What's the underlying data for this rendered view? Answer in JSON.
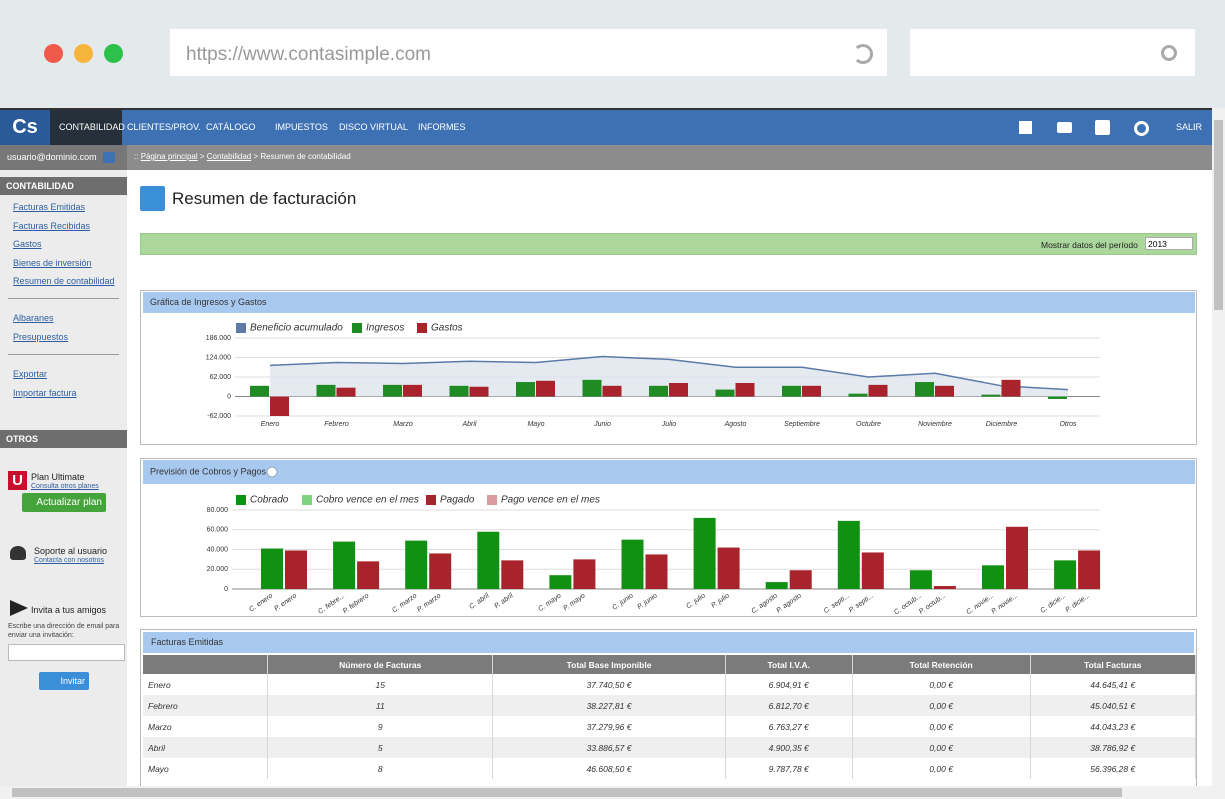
{
  "browser": {
    "url": "https://www.contasimple.com"
  },
  "nav": {
    "logo": "Cs",
    "items": [
      "CONTABILIDAD",
      "CLIENTES/PROV.",
      "CATÁLOGO",
      "IMPUESTOS",
      "DISCO VIRTUAL",
      "INFORMES"
    ],
    "logout": "SALIR"
  },
  "user": "usuario@dominio.com",
  "breadcrumb": {
    "prefix": "::",
    "links": [
      "Página principal",
      "Contabilidad"
    ],
    "separator": ">",
    "current": "Resumen de contabilidad"
  },
  "sidebar": {
    "section1": {
      "title": "CONTABILIDAD",
      "links": [
        "Facturas Emitidas",
        "Facturas Recibidas",
        "Gastos",
        "Bienes de inversión",
        "Resumen de contabilidad"
      ],
      "links2": [
        "Albaranes",
        "Presupuestos"
      ],
      "links3": [
        "Exportar",
        "Importar factura"
      ]
    },
    "section2": {
      "title": "OTROS",
      "plan": {
        "icon": "U",
        "name": "Plan Ultimate",
        "link": "Consulta otros planes",
        "button": "Actualizar plan"
      },
      "support": {
        "title": "Soporte al usuario",
        "link": "Contacta con nosotros"
      },
      "invite": {
        "title": "Invita a tus amigos",
        "text": "Escribe una dirección de email para enviar una invitación:",
        "button": "Invitar"
      }
    }
  },
  "page": {
    "title": "Resumen de facturación",
    "period_label": "Mostrar datos del período",
    "period": "2013"
  },
  "chart_data": [
    {
      "type": "bar",
      "title": "Gráfica de Ingresos y Gastos",
      "categories": [
        "Enero",
        "Febrero",
        "Marzo",
        "Abril",
        "Mayo",
        "Junio",
        "Julio",
        "Agosto",
        "Septiembre",
        "Octubre",
        "Noviembre",
        "Diciembre",
        "Otros"
      ],
      "series": [
        {
          "name": "Beneficio acumulado",
          "type": "area",
          "color": "#5b7aa8",
          "values": [
            99000,
            108000,
            105000,
            112000,
            108000,
            127000,
            118000,
            93000,
            93000,
            62000,
            74000,
            34000,
            22000
          ]
        },
        {
          "name": "Ingresos",
          "color": "#1e8c23",
          "values": [
            34000,
            37000,
            37000,
            34000,
            46000,
            53000,
            34000,
            22000,
            34000,
            9000,
            46000,
            6000,
            -8000
          ]
        },
        {
          "name": "Gastos",
          "color": "#a8232b",
          "values": [
            -62000,
            28000,
            37000,
            31000,
            50000,
            34000,
            43000,
            43000,
            34000,
            37000,
            34000,
            53000,
            null
          ]
        }
      ],
      "ylim": [
        -62000,
        186000
      ],
      "yticks": [
        {
          "value": -62000,
          "label": "-62.000"
        },
        0,
        {
          "value": 62000,
          "label": "62.000"
        },
        {
          "value": 124000,
          "label": "124.000"
        },
        {
          "value": 186000,
          "label": "186.000"
        }
      ],
      "grid": true
    },
    {
      "type": "bar",
      "title": "Previsión de Cobros y Pagos",
      "bar_labels": [
        "C. enero",
        "P. enero",
        "C. febre...",
        "P. febrero",
        "C. marzo",
        "P. marzo",
        "C. abril",
        "P. abril",
        "C. mayo",
        "P. mayo",
        "C. junio",
        "P. junio",
        "C. julio",
        "P. julio",
        "C. agosto",
        "P. agosto",
        "C. septi...",
        "P. septi...",
        "C. octub...",
        "P. octub...",
        "C. novie...",
        "P. novie...",
        "C. dicie...",
        "P. dicie..."
      ],
      "series": [
        {
          "name": "Cobrado",
          "color": "#119111",
          "values": [
            41000,
            48000,
            49000,
            58000,
            14000,
            50000,
            72000,
            7000,
            69000,
            19000,
            24000,
            29000
          ]
        },
        {
          "name": "Cobro vence en el mes",
          "color": "#7fd27f",
          "values": [
            0,
            0,
            0,
            0,
            0,
            0,
            0,
            0,
            0,
            0,
            0,
            0
          ]
        },
        {
          "name": "Pagado",
          "color": "#a8232b",
          "values": [
            39000,
            28000,
            36000,
            29000,
            30000,
            35000,
            42000,
            19000,
            37000,
            3000,
            63000,
            39000
          ]
        },
        {
          "name": "Pago vence en el mes",
          "color": "#d99aa0",
          "values": [
            0,
            0,
            0,
            0,
            0,
            0,
            0,
            0,
            0,
            0,
            0,
            0
          ]
        }
      ],
      "ylim": [
        0,
        80000
      ],
      "yticks": [
        0,
        {
          "value": 20000,
          "label": "20.000"
        },
        {
          "value": 40000,
          "label": "40.000"
        },
        {
          "value": 60000,
          "label": "60.000"
        },
        {
          "value": 80000,
          "label": "80.000"
        }
      ],
      "grid": true
    }
  ],
  "table": {
    "title": "Facturas Emitidas",
    "columns": [
      "",
      "Número de Facturas",
      "Total Base Imponible",
      "Total I.V.A.",
      "Total Retención",
      "Total Facturas"
    ],
    "rows": [
      [
        "Enero",
        "15",
        "37.740,50 €",
        "6.904,91 €",
        "0,00 €",
        "44.645,41 €"
      ],
      [
        "Febrero",
        "11",
        "38.227,81 €",
        "6.812,70 €",
        "0,00 €",
        "45.040,51 €"
      ],
      [
        "Marzo",
        "9",
        "37.279,96 €",
        "6.763,27 €",
        "0,00 €",
        "44.043,23 €"
      ],
      [
        "Abril",
        "5",
        "33.886,57 €",
        "4.900,35 €",
        "0,00 €",
        "38.786,92 €"
      ],
      [
        "Mayo",
        "8",
        "46.608,50 €",
        "9.787,78 €",
        "0,00 €",
        "56.396,28 €"
      ]
    ]
  }
}
